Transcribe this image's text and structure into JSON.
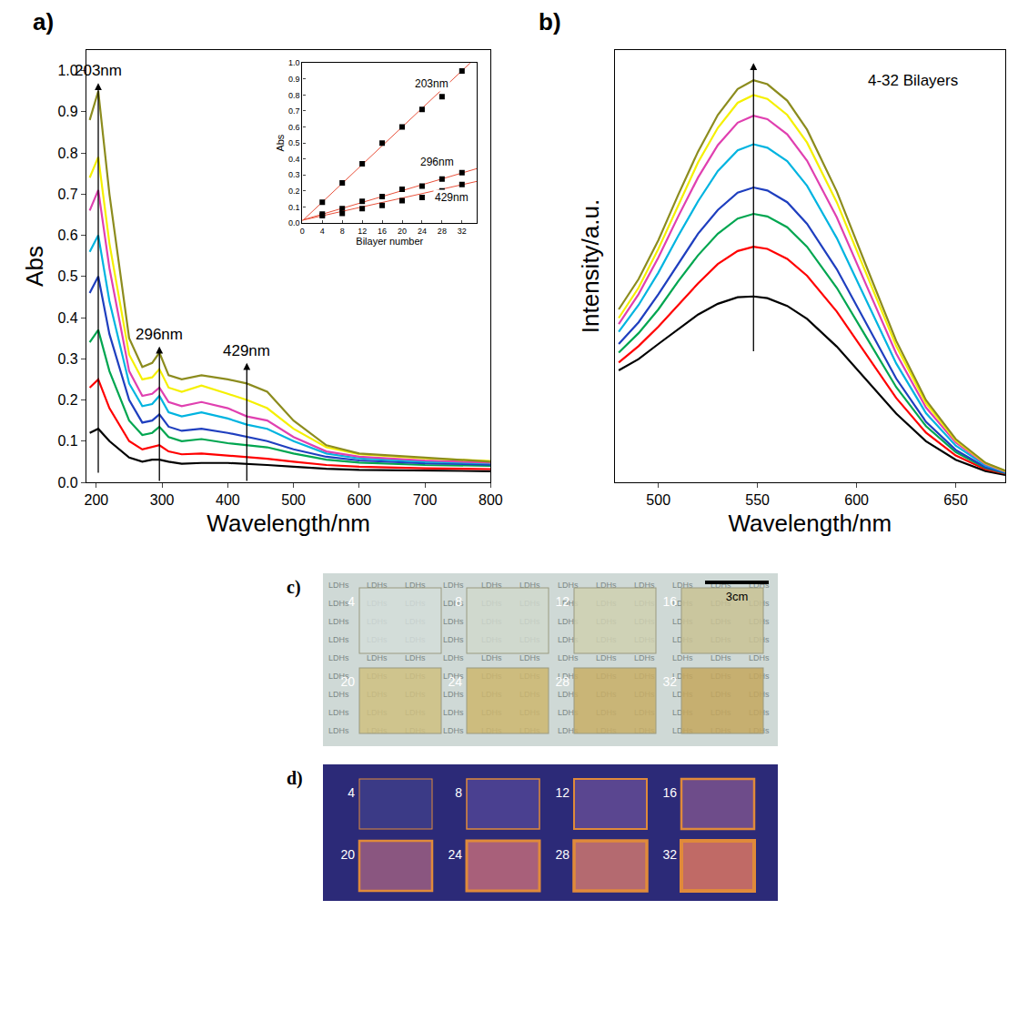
{
  "chart_data": [
    {
      "type": "line",
      "panel": "a)",
      "x_title": "Wavelength/nm",
      "y_title": "Abs",
      "xlim": [
        185,
        800
      ],
      "xticks": [
        200,
        300,
        400,
        500,
        600,
        700,
        800
      ],
      "ylim": [
        0,
        1.05
      ],
      "yticks": [
        {
          "value": 0,
          "label": "0.0"
        },
        {
          "value": 0.1,
          "label": "0.1"
        },
        {
          "value": 0.2,
          "label": "0.2"
        },
        {
          "value": 0.3,
          "label": "0.3"
        },
        {
          "value": 0.4,
          "label": "0.4"
        },
        {
          "value": 0.5,
          "label": "0.5"
        },
        {
          "value": 0.6,
          "label": "0.6"
        },
        {
          "value": 0.7,
          "label": "0.7"
        },
        {
          "value": 0.8,
          "label": "0.8"
        },
        {
          "value": 0.9,
          "label": "0.9"
        },
        {
          "value": 1.0,
          "label": "1.0"
        }
      ],
      "grid": false,
      "x": [
        190,
        203,
        220,
        250,
        270,
        285,
        296,
        310,
        330,
        360,
        400,
        429,
        460,
        500,
        550,
        600,
        700,
        800
      ],
      "series": [
        {
          "color": "#000000",
          "values": [
            0.12,
            0.13,
            0.1,
            0.06,
            0.05,
            0.055,
            0.055,
            0.05,
            0.045,
            0.047,
            0.047,
            0.045,
            0.042,
            0.038,
            0.033,
            0.03,
            0.028,
            0.027
          ]
        },
        {
          "color": "#ff0000",
          "values": [
            0.23,
            0.25,
            0.18,
            0.1,
            0.08,
            0.085,
            0.09,
            0.075,
            0.068,
            0.07,
            0.065,
            0.06,
            0.057,
            0.05,
            0.042,
            0.038,
            0.034,
            0.032
          ]
        },
        {
          "color": "#00a650",
          "values": [
            0.34,
            0.37,
            0.27,
            0.15,
            0.115,
            0.12,
            0.135,
            0.11,
            0.1,
            0.105,
            0.095,
            0.09,
            0.085,
            0.07,
            0.055,
            0.048,
            0.042,
            0.04
          ]
        },
        {
          "color": "#1f3fbf",
          "values": [
            0.46,
            0.5,
            0.36,
            0.2,
            0.145,
            0.15,
            0.165,
            0.135,
            0.125,
            0.13,
            0.12,
            0.11,
            0.1,
            0.08,
            0.062,
            0.053,
            0.046,
            0.043
          ]
        },
        {
          "color": "#00b4e0",
          "values": [
            0.56,
            0.6,
            0.44,
            0.24,
            0.185,
            0.19,
            0.21,
            0.17,
            0.16,
            0.17,
            0.155,
            0.14,
            0.13,
            0.1,
            0.07,
            0.058,
            0.05,
            0.046
          ]
        },
        {
          "color": "#e040b0",
          "values": [
            0.66,
            0.71,
            0.52,
            0.27,
            0.21,
            0.215,
            0.23,
            0.195,
            0.185,
            0.195,
            0.18,
            0.16,
            0.15,
            0.11,
            0.075,
            0.062,
            0.053,
            0.048
          ]
        },
        {
          "color": "#f5f000",
          "values": [
            0.74,
            0.79,
            0.58,
            0.31,
            0.25,
            0.255,
            0.275,
            0.23,
            0.22,
            0.235,
            0.215,
            0.2,
            0.18,
            0.13,
            0.085,
            0.068,
            0.058,
            0.052
          ]
        },
        {
          "color": "#8c8c1e",
          "values": [
            0.88,
            0.95,
            0.7,
            0.35,
            0.28,
            0.29,
            0.315,
            0.26,
            0.25,
            0.26,
            0.25,
            0.24,
            0.22,
            0.15,
            0.09,
            0.07,
            0.06,
            0.05
          ]
        }
      ],
      "arrows": [
        {
          "text": "203nm",
          "x": 203,
          "y_from": 0.02,
          "y_to": 0.97
        },
        {
          "text": "296nm",
          "x": 296,
          "y_from": 0.0,
          "y_to": 0.33
        },
        {
          "text": "429nm",
          "x": 429,
          "y_from": 0.0,
          "y_to": 0.29
        }
      ]
    },
    {
      "type": "scatter",
      "x_title": "Bilayer number",
      "y_title": "Abs",
      "xlim": [
        0,
        35
      ],
      "xticks": [
        0,
        4,
        8,
        12,
        16,
        20,
        24,
        28,
        32
      ],
      "ylim": [
        0,
        1.0
      ],
      "yticks": [
        {
          "value": 0,
          "label": "0.0"
        },
        {
          "value": 0.1,
          "label": "0.1"
        },
        {
          "value": 0.2,
          "label": "0.2"
        },
        {
          "value": 0.3,
          "label": "0.3"
        },
        {
          "value": 0.4,
          "label": "0.4"
        },
        {
          "value": 0.5,
          "label": "0.5"
        },
        {
          "value": 0.6,
          "label": "0.6"
        },
        {
          "value": 0.7,
          "label": "0.7"
        },
        {
          "value": 0.8,
          "label": "0.8"
        },
        {
          "value": 0.9,
          "label": "0.9"
        },
        {
          "value": 1.0,
          "label": "1.0"
        }
      ],
      "marker": "square",
      "color": "#000000",
      "x": [
        4,
        8,
        12,
        16,
        20,
        24,
        28,
        32
      ],
      "series": [
        {
          "values": [
            0.13,
            0.25,
            0.37,
            0.5,
            0.6,
            0.71,
            0.79,
            0.95
          ],
          "fit_x": [
            0,
            35
          ],
          "fit_values": [
            0.013,
            1.04
          ],
          "fit_color": "#e8503a"
        },
        {
          "values": [
            0.055,
            0.09,
            0.135,
            0.165,
            0.21,
            0.23,
            0.275,
            0.315
          ],
          "fit_x": [
            0,
            35
          ],
          "fit_values": [
            0.018,
            0.34
          ],
          "fit_color": "#e8503a"
        },
        {
          "values": [
            0.045,
            0.06,
            0.09,
            0.11,
            0.14,
            0.16,
            0.2,
            0.24
          ],
          "fit_x": [
            0,
            35
          ],
          "fit_values": [
            0.017,
            0.26
          ],
          "fit_color": "#e8503a"
        }
      ],
      "annotations": [
        {
          "text": "203nm",
          "x": 26,
          "y": 0.87
        },
        {
          "text": "296nm",
          "x": 27,
          "y": 0.38
        },
        {
          "text": "429nm",
          "x": 30,
          "y": 0.16
        }
      ]
    },
    {
      "type": "line",
      "panel": "b)",
      "x_title": "Wavelength/nm",
      "y_title": "Intensity/a.u.",
      "xlim": [
        478,
        675
      ],
      "xticks": [
        500,
        550,
        600,
        650
      ],
      "ylim": [
        0,
        100
      ],
      "yticks": [],
      "tick_labels": "x",
      "grid": false,
      "x": [
        480,
        490,
        500,
        510,
        520,
        530,
        540,
        548,
        555,
        565,
        575,
        590,
        605,
        620,
        635,
        650,
        665,
        675
      ],
      "series": [
        {
          "color": "#000000",
          "values": [
            25.9,
            28.5,
            32,
            35.5,
            38.8,
            41.3,
            42.8,
            43,
            42.6,
            40.8,
            37.8,
            31.4,
            23.6,
            15.9,
            9.5,
            5.2,
            2.6,
            1.7
          ]
        },
        {
          "color": "#ff0000",
          "values": [
            27.7,
            31.5,
            36,
            41,
            46,
            50.5,
            53.5,
            54.5,
            54,
            51.7,
            47.8,
            39.5,
            29.5,
            19.5,
            11.5,
            6.2,
            3,
            2
          ]
        },
        {
          "color": "#00a650",
          "values": [
            30,
            34.5,
            40,
            46.5,
            52.5,
            57.5,
            61,
            62.1,
            61.5,
            59,
            54.5,
            45,
            33.5,
            22,
            13,
            7,
            3.3,
            2.1
          ]
        },
        {
          "color": "#1f3fbf",
          "values": [
            32,
            37,
            43.5,
            50.5,
            57.5,
            63,
            67,
            68.2,
            67.5,
            64.8,
            59.8,
            49.3,
            36.7,
            24,
            14,
            7.5,
            3.5,
            2.2
          ]
        },
        {
          "color": "#00b4e0",
          "values": [
            34.8,
            41,
            48.5,
            57,
            65,
            72,
            76.8,
            78.2,
            77.4,
            74.3,
            68.6,
            56.5,
            42,
            27.5,
            16,
            8.5,
            3.9,
            2.4
          ]
        },
        {
          "color": "#e040b0",
          "values": [
            36.6,
            43.5,
            52,
            61.5,
            70.5,
            78,
            83.2,
            84.8,
            84,
            80.5,
            74.4,
            61.3,
            45.5,
            29.8,
            17.3,
            9.2,
            4.2,
            2.5
          ]
        },
        {
          "color": "#f5f000",
          "values": [
            38,
            45,
            54,
            64,
            74,
            82,
            87.8,
            89.6,
            88.7,
            85,
            78.6,
            64.8,
            48,
            31.5,
            18.3,
            9.7,
            4.4,
            2.6
          ]
        },
        {
          "color": "#8c8c1e",
          "values": [
            40,
            47,
            56,
            66.5,
            76.5,
            85,
            91,
            93,
            92.1,
            88.3,
            81.6,
            67.3,
            49.9,
            32.7,
            19,
            10,
            4.5,
            2.7
          ]
        }
      ],
      "arrows": [
        {
          "x": 548,
          "y_from": 30,
          "y_to": 97
        }
      ],
      "annotations": [
        {
          "text": "4-32 Bilayers",
          "x": 605,
          "y": 93
        }
      ]
    }
  ],
  "photos": [
    {
      "panel": "c)",
      "background": "#cfd9d6",
      "background_text": "LDHs",
      "scale_bar": "3cm",
      "slides": [
        "4",
        "8",
        "12",
        "16",
        "20",
        "24",
        "28",
        "32"
      ],
      "colors": [
        "#d3ddd9",
        "#d0d8cc",
        "#cfd0b0",
        "#c9c294",
        "#cfc080",
        "#cdb66e",
        "#c8ae66",
        "#c4a75e"
      ]
    },
    {
      "panel": "d)",
      "background": "#2c2a78",
      "slides": [
        "4",
        "8",
        "12",
        "16",
        "20",
        "24",
        "28",
        "32"
      ],
      "colors": [
        "#3b3a86",
        "#4a4090",
        "#5a4690",
        "#6e4c8a",
        "#8a5680",
        "#a8607a",
        "#b46a70",
        "#c06a66"
      ]
    }
  ]
}
